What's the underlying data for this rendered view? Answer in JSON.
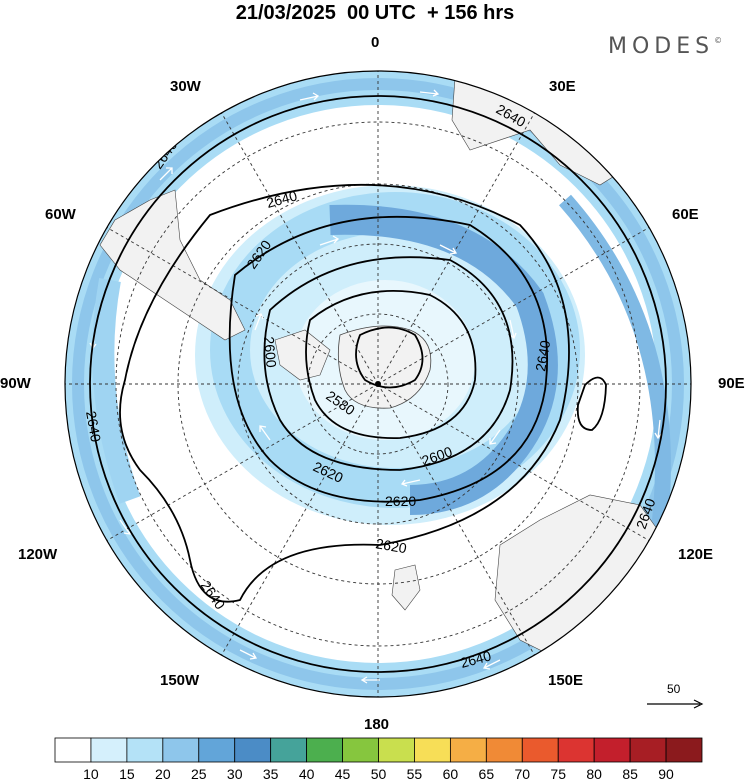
{
  "header": {
    "title": "21/03/2025  00 UTC  + 156 hrs",
    "brand": "MODES",
    "brand_mark": "©"
  },
  "map": {
    "projection": "polar-stereographic-south",
    "longitude_labels": {
      "top": "0",
      "top_left": "30W",
      "top_right": "30E",
      "upper_left": "60W",
      "upper_right": "60E",
      "left": "90W",
      "right": "90E",
      "lower_left": "120W",
      "lower_right": "120E",
      "bottom_left": "150W",
      "bottom_right": "150E",
      "bottom": "180"
    },
    "contour_labels": [
      "2640",
      "2640",
      "2640",
      "2640",
      "2640",
      "2640",
      "2640",
      "2640",
      "2620",
      "2620",
      "2620",
      "2620",
      "2600",
      "2600",
      "2580"
    ],
    "reference_vector_label": "50",
    "colors": {
      "land": "#f2f2f2",
      "contour": "#000000",
      "grid": "#333333"
    }
  },
  "colorbar": {
    "labels": [
      "10",
      "15",
      "20",
      "25",
      "30",
      "35",
      "40",
      "45",
      "50",
      "55",
      "60",
      "65",
      "70",
      "75",
      "80",
      "85",
      "90"
    ],
    "colors": [
      "#ffffff",
      "#d5f0fc",
      "#b4e2f7",
      "#8ec6eb",
      "#62a5d9",
      "#4b8cc6",
      "#45a39a",
      "#4caf4e",
      "#86c63e",
      "#c9df4e",
      "#f7de57",
      "#f5ae45",
      "#f08a36",
      "#ea5a2d",
      "#dc3431",
      "#c31f2c",
      "#a71e24",
      "#8b1a1d"
    ]
  }
}
